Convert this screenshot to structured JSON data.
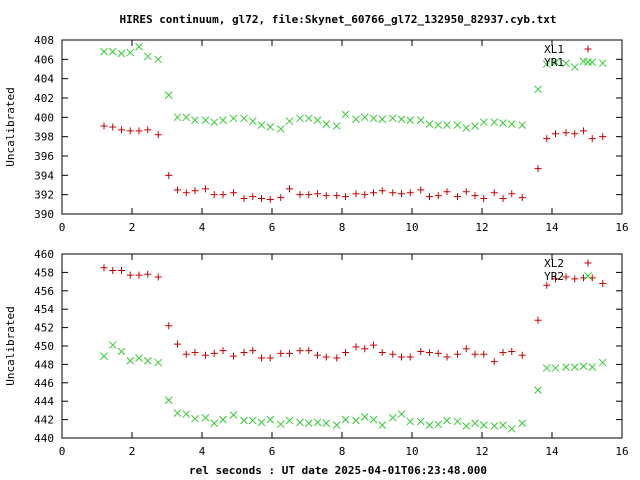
{
  "title": "HIRES continuum, gl72, file:Skynet_60766_gl72_132950_82937.cyb.txt",
  "xlabel": "rel seconds : UT date 2025-04-01T06:23:48.000",
  "colors": {
    "red": "#cc0000",
    "green": "#33cc33"
  },
  "chart_data": [
    {
      "type": "scatter",
      "ylabel": "Uncalibrated",
      "xlim": [
        0,
        16
      ],
      "ylim": [
        390,
        408
      ],
      "xticks": [
        0,
        2,
        4,
        6,
        8,
        10,
        12,
        14,
        16
      ],
      "yticks": [
        390,
        392,
        394,
        396,
        398,
        400,
        402,
        404,
        406,
        408
      ],
      "legend_position": "top-right",
      "series": [
        {
          "name": "XL1",
          "marker": "+",
          "color": "#cc0000",
          "x": [
            1.2,
            1.45,
            1.7,
            1.95,
            2.2,
            2.45,
            2.75,
            3.05,
            3.3,
            3.55,
            3.8,
            4.1,
            4.35,
            4.6,
            4.9,
            5.2,
            5.45,
            5.7,
            5.95,
            6.25,
            6.5,
            6.8,
            7.05,
            7.3,
            7.55,
            7.85,
            8.1,
            8.4,
            8.65,
            8.9,
            9.15,
            9.45,
            9.7,
            9.95,
            10.25,
            10.5,
            10.75,
            11.0,
            11.3,
            11.55,
            11.8,
            12.05,
            12.35,
            12.6,
            12.85,
            13.15,
            13.6,
            13.85,
            14.1,
            14.4,
            14.65,
            14.9,
            15.15,
            15.45
          ],
          "y": [
            399.1,
            399.0,
            398.7,
            398.6,
            398.6,
            398.7,
            398.2,
            394.0,
            392.5,
            392.2,
            392.4,
            392.6,
            392.0,
            392.0,
            392.2,
            391.6,
            391.8,
            391.6,
            391.5,
            391.7,
            392.6,
            392.0,
            392.0,
            392.1,
            391.9,
            391.9,
            391.8,
            392.1,
            392.0,
            392.2,
            392.4,
            392.2,
            392.1,
            392.2,
            392.5,
            391.8,
            391.9,
            392.3,
            391.8,
            392.3,
            391.9,
            391.6,
            392.2,
            391.6,
            392.1,
            391.7,
            394.7,
            397.8,
            398.3,
            398.4,
            398.3,
            398.6,
            397.8,
            398.0
          ]
        },
        {
          "name": "YR1",
          "marker": "x",
          "color": "#33cc33",
          "x": [
            1.2,
            1.45,
            1.7,
            1.95,
            2.2,
            2.45,
            2.75,
            3.05,
            3.3,
            3.55,
            3.8,
            4.1,
            4.35,
            4.6,
            4.9,
            5.2,
            5.45,
            5.7,
            5.95,
            6.25,
            6.5,
            6.8,
            7.05,
            7.3,
            7.55,
            7.85,
            8.1,
            8.4,
            8.65,
            8.9,
            9.15,
            9.45,
            9.7,
            9.95,
            10.25,
            10.5,
            10.75,
            11.0,
            11.3,
            11.55,
            11.8,
            12.05,
            12.35,
            12.6,
            12.85,
            13.15,
            13.6,
            13.85,
            14.1,
            14.4,
            14.65,
            14.9,
            15.15,
            15.45
          ],
          "y": [
            406.8,
            406.8,
            406.6,
            406.7,
            407.3,
            406.3,
            406.0,
            402.3,
            400.0,
            400.0,
            399.7,
            399.7,
            399.5,
            399.7,
            399.9,
            399.9,
            399.6,
            399.2,
            399.0,
            398.8,
            399.6,
            399.9,
            399.9,
            399.7,
            399.3,
            399.1,
            400.3,
            399.8,
            400.0,
            399.9,
            399.8,
            399.9,
            399.8,
            399.7,
            399.7,
            399.3,
            399.2,
            399.2,
            399.2,
            398.9,
            399.1,
            399.5,
            399.5,
            399.4,
            399.3,
            399.2,
            402.9,
            405.5,
            405.7,
            405.6,
            405.2,
            405.8,
            405.7,
            405.6
          ]
        }
      ]
    },
    {
      "type": "scatter",
      "ylabel": "Uncalibrated",
      "xlim": [
        0,
        16
      ],
      "ylim": [
        440,
        460
      ],
      "xticks": [
        0,
        2,
        4,
        6,
        8,
        10,
        12,
        14,
        16
      ],
      "yticks": [
        440,
        442,
        444,
        446,
        448,
        450,
        452,
        454,
        456,
        458,
        460
      ],
      "legend_position": "top-right",
      "series": [
        {
          "name": "XL2",
          "marker": "+",
          "color": "#cc0000",
          "x": [
            1.2,
            1.45,
            1.7,
            1.95,
            2.2,
            2.45,
            2.75,
            3.05,
            3.3,
            3.55,
            3.8,
            4.1,
            4.35,
            4.6,
            4.9,
            5.2,
            5.45,
            5.7,
            5.95,
            6.25,
            6.5,
            6.8,
            7.05,
            7.3,
            7.55,
            7.85,
            8.1,
            8.4,
            8.65,
            8.9,
            9.15,
            9.45,
            9.7,
            9.95,
            10.25,
            10.5,
            10.75,
            11.0,
            11.3,
            11.55,
            11.8,
            12.05,
            12.35,
            12.6,
            12.85,
            13.15,
            13.6,
            13.85,
            14.1,
            14.4,
            14.65,
            14.9,
            15.15,
            15.45
          ],
          "y": [
            458.5,
            458.2,
            458.2,
            457.7,
            457.7,
            457.8,
            457.5,
            452.2,
            450.2,
            449.1,
            449.3,
            449.0,
            449.2,
            449.5,
            448.9,
            449.3,
            449.5,
            448.7,
            448.7,
            449.2,
            449.2,
            449.5,
            449.5,
            449.0,
            448.8,
            448.7,
            449.3,
            449.9,
            449.7,
            450.1,
            449.3,
            449.1,
            448.8,
            448.8,
            449.4,
            449.3,
            449.2,
            448.8,
            449.1,
            449.7,
            449.1,
            449.1,
            448.3,
            449.3,
            449.4,
            449.0,
            452.8,
            456.6,
            457.3,
            457.5,
            457.3,
            457.4,
            457.4,
            456.8
          ]
        },
        {
          "name": "YR2",
          "marker": "x",
          "color": "#33cc33",
          "x": [
            1.2,
            1.45,
            1.7,
            1.95,
            2.2,
            2.45,
            2.75,
            3.05,
            3.3,
            3.55,
            3.8,
            4.1,
            4.35,
            4.6,
            4.9,
            5.2,
            5.45,
            5.7,
            5.95,
            6.25,
            6.5,
            6.8,
            7.05,
            7.3,
            7.55,
            7.85,
            8.1,
            8.4,
            8.65,
            8.9,
            9.15,
            9.45,
            9.7,
            9.95,
            10.25,
            10.5,
            10.75,
            11.0,
            11.3,
            11.55,
            11.8,
            12.05,
            12.35,
            12.6,
            12.85,
            13.15,
            13.6,
            13.85,
            14.1,
            14.4,
            14.65,
            14.9,
            15.15,
            15.45
          ],
          "y": [
            448.9,
            450.1,
            449.4,
            448.4,
            448.7,
            448.4,
            448.2,
            444.1,
            442.7,
            442.6,
            442.1,
            442.2,
            441.6,
            442.0,
            442.5,
            441.9,
            441.9,
            441.7,
            442.0,
            441.5,
            441.9,
            441.7,
            441.6,
            441.7,
            441.6,
            441.4,
            442.0,
            441.9,
            442.3,
            442.0,
            441.4,
            442.2,
            442.6,
            441.8,
            441.8,
            441.4,
            441.5,
            441.9,
            441.8,
            441.3,
            441.6,
            441.4,
            441.3,
            441.4,
            441.0,
            441.6,
            445.2,
            447.6,
            447.6,
            447.7,
            447.7,
            447.8,
            447.7,
            448.2
          ]
        }
      ]
    }
  ]
}
